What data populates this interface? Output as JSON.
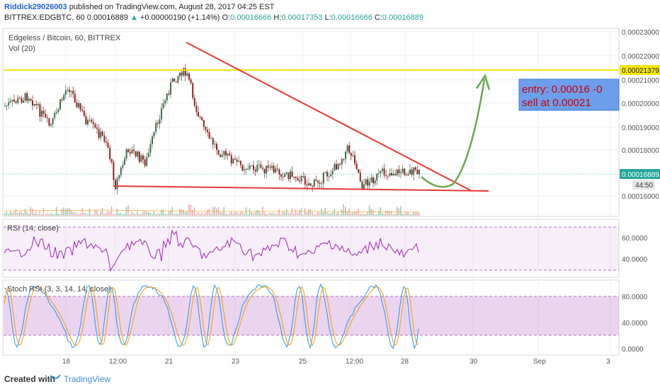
{
  "header": {
    "author": "Riddick29026003",
    "published": "published on TradingView.com, August 28, 2017 04:25 EST",
    "symbol": "BITTREX:EDGBTC, 60",
    "last": "0.00016889",
    "change": "+0.00000190 (+1.14%)",
    "o_label": "O:",
    "o_val": "0.00016666",
    "h_label": "H:",
    "h_val": "0.00017353",
    "l_label": "L:",
    "l_val": "0.00016666",
    "c_label": "C:",
    "c_val": "0.00016889"
  },
  "main": {
    "title": "Edgeless / Bitcoin, 60, BITTREX",
    "vol_label": "Vol (20)",
    "price_ticks": [
      "0.00023000",
      "0.00022000",
      "0.00021000",
      "0.00020000",
      "0.00019000",
      "0.00018000",
      "0.00016000"
    ],
    "resistance_label": "0.00021379",
    "current_label": "0.00016889",
    "countdown": "44:50",
    "note_line1": "entry: 0.00016 -0",
    "note_line2": "sell at  0.00021"
  },
  "rsi": {
    "title": "RSI (14, close)",
    "ticks": [
      "60.0000",
      "40.0000"
    ]
  },
  "stoch": {
    "title": "Stoch RSI (3, 3, 14, 14, close)",
    "ticks": [
      "80.0000",
      "40.0000",
      "0.0000"
    ]
  },
  "time_axis": [
    "18",
    "12:00",
    "21",
    "23",
    "25",
    "12:00",
    "28",
    "30",
    "Sep",
    "3"
  ],
  "footer": {
    "created": "Created with",
    "brand": "TradingView"
  },
  "colors": {
    "resistance": "#f5e50a",
    "trendline": "#e53935",
    "arrow": "#6aa84f",
    "note_bg": "#6d9eeb",
    "note_text": "#cc0000",
    "rsi_line": "#9c27b0",
    "stoch_k": "#2196f3",
    "stoch_d": "#ff9800",
    "candle_up": "#3d6b4a",
    "candle_down": "#8b2222"
  }
}
